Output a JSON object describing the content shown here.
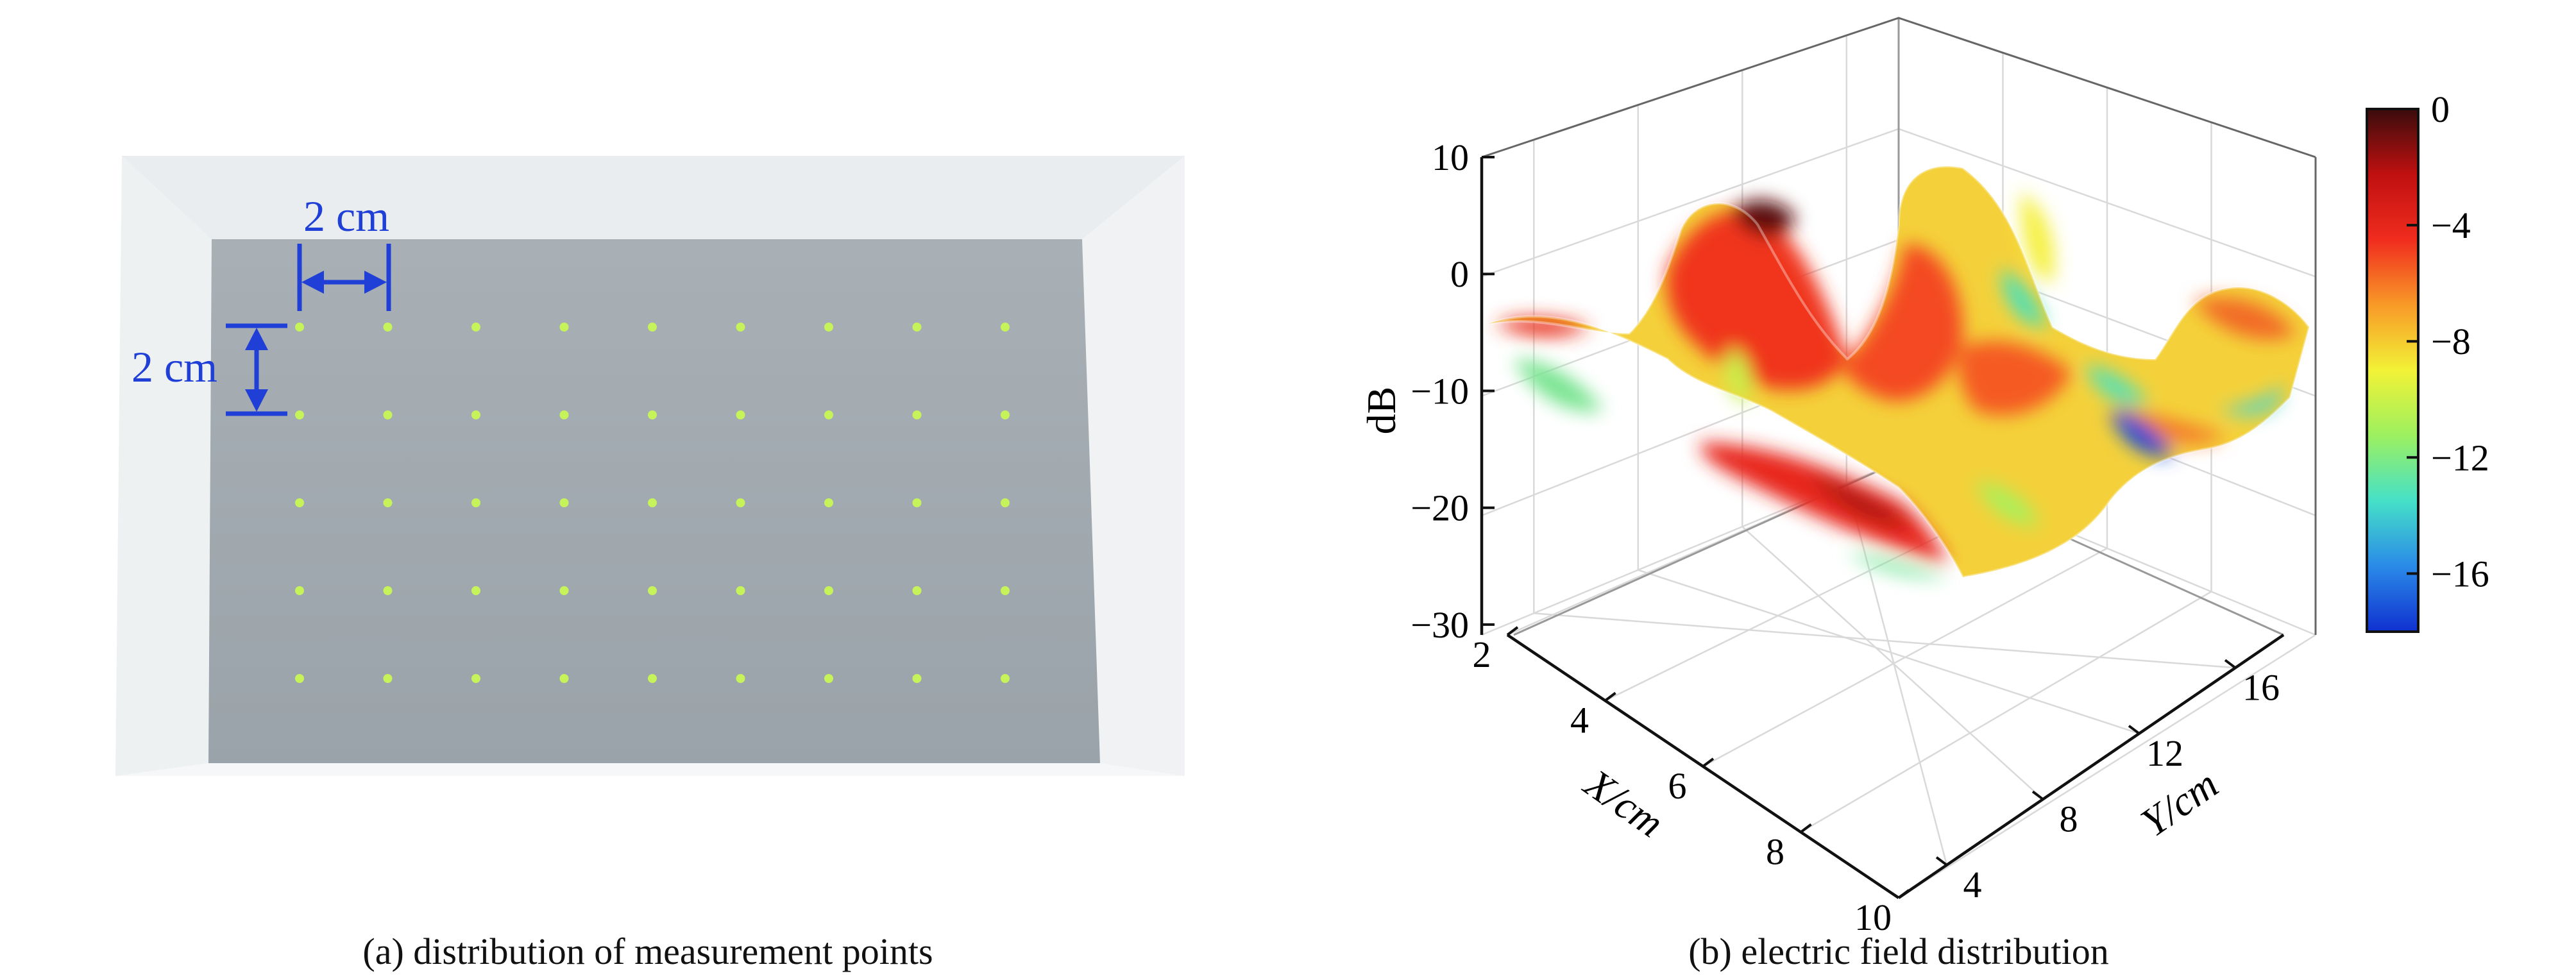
{
  "panel_a": {
    "caption": "(a) distribution of measurement points",
    "spacing_x_label": "2 cm",
    "spacing_y_label": "2 cm",
    "annotation_color": "#1f3fd6",
    "point_color": "#c6f25a",
    "grid_rows": 5,
    "grid_cols": 9
  },
  "panel_b": {
    "caption": "(b) electric field distribution"
  },
  "chart_data": {
    "type": "surface3d",
    "title": "",
    "zlabel": "dB",
    "xlabel": "X/cm",
    "ylabel": "Y/cm",
    "z_ticks": [
      "10",
      "0",
      "−10",
      "−20",
      "−30"
    ],
    "x_ticks": [
      "2",
      "4",
      "6",
      "8",
      "10"
    ],
    "y_ticks": [
      "4",
      "8",
      "12",
      "16"
    ],
    "zlim": [
      -30,
      10
    ],
    "xlim": [
      2,
      10
    ],
    "ylim": [
      2,
      18
    ],
    "grid": true,
    "colorbar": {
      "ticks": [
        "0",
        "−4",
        "−8",
        "−12",
        "−16"
      ],
      "range": [
        -18,
        0
      ],
      "colormap": [
        "#1030d0",
        "#2a8ae8",
        "#45e0c8",
        "#9cf060",
        "#f2f236",
        "#f89a28",
        "#f02c1e",
        "#c01010",
        "#3a0c0c"
      ]
    },
    "surface": {
      "x": [
        2,
        4,
        6,
        8,
        10
      ],
      "y": [
        2,
        6,
        10,
        14,
        18
      ],
      "z": [
        [
          -5,
          -1,
          -6,
          -3,
          -6
        ],
        [
          -8,
          -3,
          -4,
          -2,
          -4
        ],
        [
          -6,
          -4,
          -3,
          -5,
          -17
        ],
        [
          -7,
          -2,
          -2,
          -4,
          -2
        ],
        [
          -12,
          -8,
          -3,
          -8,
          -7
        ]
      ]
    }
  }
}
